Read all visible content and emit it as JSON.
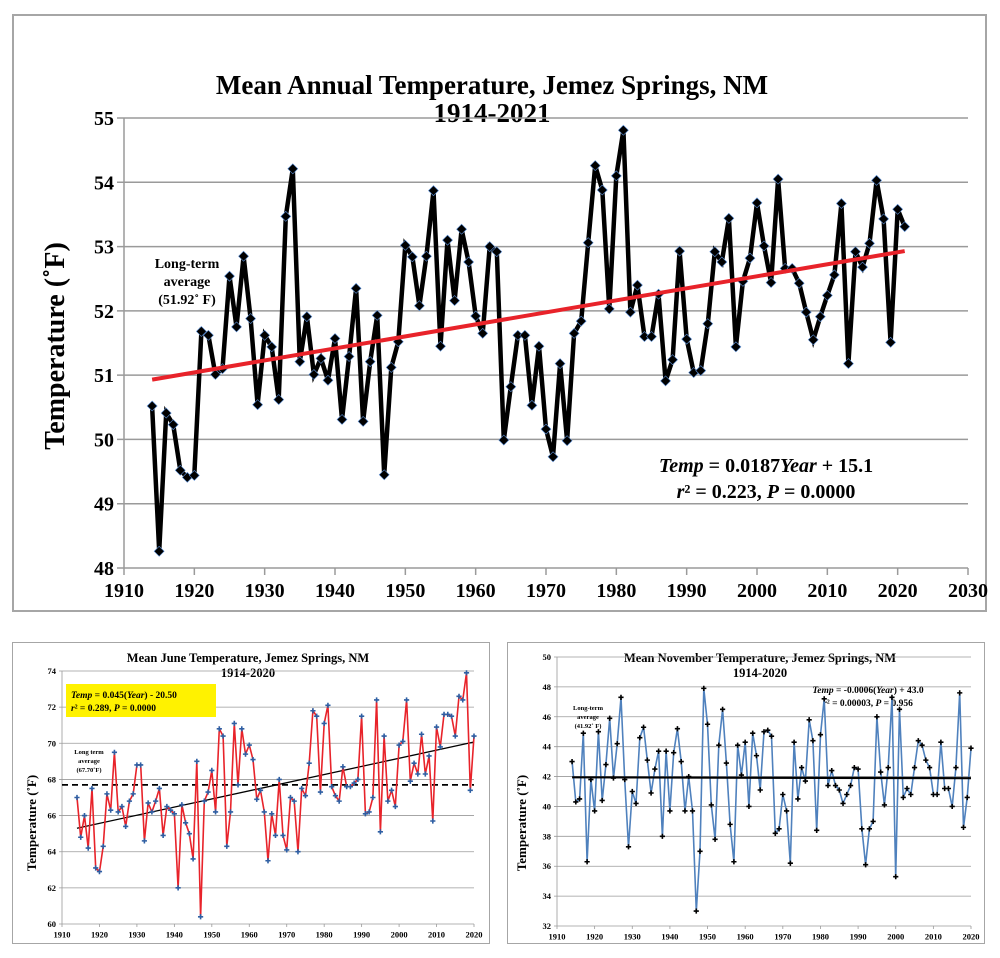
{
  "chart_data": [
    {
      "id": "annual",
      "type": "line",
      "title": "Mean  Annual  Temperature,  Jemez Springs, NM",
      "subtitle": "1914-2021",
      "xlabel": "",
      "ylabel": "Temperature (˚F)",
      "xlim": [
        1910,
        2030
      ],
      "ylim": [
        48,
        55
      ],
      "xticks": [
        1910,
        1920,
        1930,
        1940,
        1950,
        1960,
        1970,
        1980,
        1990,
        2000,
        2010,
        2020,
        2030
      ],
      "yticks": [
        48,
        49,
        50,
        51,
        52,
        53,
        54,
        55
      ],
      "grid": true,
      "series_color": "#000000",
      "marker_color": "#000000",
      "trend_color": "#e8232a",
      "annotation_avg": [
        "Long-term",
        "average",
        "(51.92˚ F)"
      ],
      "equation_line1": {
        "a": "Temp",
        "b": " = 0.0187",
        "c": "Year",
        "d": " + 15.1"
      },
      "equation_line2": {
        "a": "r",
        "b": "² = 0.223, ",
        "c": "P",
        "d": " = 0.0000"
      },
      "trend": {
        "slope": 0.0187,
        "intercept": 15.1,
        "x_start": 1914,
        "x_end": 2021,
        "y_start": 50.93,
        "y_end": 52.93
      },
      "long_term_average": 51.92,
      "x": [
        1914,
        1915,
        1916,
        1917,
        1918,
        1919,
        1920,
        1921,
        1922,
        1923,
        1924,
        1925,
        1926,
        1927,
        1928,
        1929,
        1930,
        1931,
        1932,
        1933,
        1934,
        1935,
        1936,
        1937,
        1938,
        1939,
        1940,
        1941,
        1942,
        1943,
        1944,
        1945,
        1946,
        1947,
        1948,
        1949,
        1950,
        1951,
        1952,
        1953,
        1954,
        1955,
        1956,
        1957,
        1958,
        1959,
        1960,
        1961,
        1962,
        1963,
        1964,
        1965,
        1966,
        1967,
        1968,
        1969,
        1970,
        1971,
        1972,
        1973,
        1974,
        1975,
        1976,
        1977,
        1978,
        1979,
        1980,
        1981,
        1982,
        1983,
        1984,
        1985,
        1986,
        1987,
        1988,
        1989,
        1990,
        1991,
        1992,
        1993,
        1994,
        1995,
        1996,
        1997,
        1998,
        1999,
        2000,
        2001,
        2002,
        2003,
        2004,
        2005,
        2006,
        2007,
        2008,
        2009,
        2010,
        2011,
        2012,
        2013,
        2014,
        2015,
        2016,
        2017,
        2018,
        2019,
        2020,
        2021
      ],
      "values": [
        50.52,
        48.26,
        50.41,
        50.23,
        49.52,
        49.41,
        49.44,
        51.68,
        51.62,
        51.01,
        51.1,
        52.54,
        51.75,
        52.85,
        51.88,
        50.54,
        51.62,
        51.44,
        50.62,
        53.47,
        54.21,
        51.21,
        51.91,
        51.01,
        51.26,
        50.92,
        51.57,
        50.31,
        51.29,
        52.35,
        50.28,
        51.21,
        51.93,
        49.45,
        51.12,
        51.52,
        53.02,
        52.84,
        52.08,
        52.85,
        53.87,
        51.45,
        53.1,
        52.16,
        53.27,
        52.76,
        51.92,
        51.65,
        53.0,
        52.92,
        49.99,
        50.82,
        51.62,
        51.62,
        50.53,
        51.45,
        50.16,
        49.73,
        51.18,
        49.98,
        51.65,
        51.84,
        53.06,
        54.26,
        53.88,
        52.03,
        54.1,
        54.81,
        51.98,
        52.4,
        51.6,
        51.6,
        52.26,
        50.91,
        51.24,
        52.93,
        51.56,
        51.04,
        51.07,
        51.8,
        52.92,
        52.76,
        53.44,
        51.44,
        52.46,
        52.82,
        53.68,
        53.01,
        52.44,
        54.05,
        52.66,
        52.66,
        52.43,
        51.98,
        51.55,
        51.91,
        52.24,
        52.56,
        53.67,
        51.18,
        52.92,
        52.68,
        53.05,
        54.03,
        53.43,
        51.51,
        53.58,
        53.31
      ]
    },
    {
      "id": "june",
      "type": "line",
      "title": "Mean  June  Temperature,  Jemez Springs, NM",
      "subtitle": "1914-2020",
      "xlabel": "",
      "ylabel": "Temperature (˚F)",
      "xlim": [
        1910,
        2020
      ],
      "ylim": [
        60,
        74
      ],
      "xticks": [
        1910,
        1920,
        1930,
        1940,
        1950,
        1960,
        1970,
        1980,
        1990,
        2000,
        2010,
        2020
      ],
      "yticks": [
        60,
        62,
        64,
        66,
        68,
        70,
        72,
        74
      ],
      "grid": true,
      "series_color": "#e8232a",
      "marker_color": "#2e5fa3",
      "trend_color": "#000000",
      "box_color": "#fff200",
      "annotation_avg": [
        "Long term",
        "average",
        "(67.70˚F)"
      ],
      "equation_line1": {
        "a": "Temp",
        "b": " = 0.045(",
        "c": "Year",
        "d": ") - 20.50"
      },
      "equation_line2": {
        "a": "r",
        "b": "² = 0.289, ",
        "c": "P",
        "d": " = 0.0000"
      },
      "trend": {
        "slope": 0.045,
        "intercept": -20.5,
        "x_start": 1914,
        "x_end": 2020,
        "y_start": 65.3,
        "y_end": 70.07
      },
      "long_term_average": 67.7,
      "x": [
        1914,
        1915,
        1916,
        1917,
        1918,
        1919,
        1920,
        1921,
        1922,
        1923,
        1924,
        1925,
        1926,
        1927,
        1928,
        1929,
        1930,
        1931,
        1932,
        1933,
        1934,
        1935,
        1936,
        1937,
        1938,
        1939,
        1940,
        1941,
        1942,
        1943,
        1944,
        1945,
        1946,
        1947,
        1948,
        1949,
        1950,
        1951,
        1952,
        1953,
        1954,
        1955,
        1956,
        1957,
        1958,
        1959,
        1960,
        1961,
        1962,
        1963,
        1964,
        1965,
        1966,
        1967,
        1968,
        1969,
        1970,
        1971,
        1972,
        1973,
        1974,
        1975,
        1976,
        1977,
        1978,
        1979,
        1980,
        1981,
        1982,
        1983,
        1984,
        1985,
        1986,
        1987,
        1988,
        1989,
        1990,
        1991,
        1992,
        1993,
        1994,
        1995,
        1996,
        1997,
        1998,
        1999,
        2000,
        2001,
        2002,
        2003,
        2004,
        2005,
        2006,
        2007,
        2008,
        2009,
        2010,
        2011,
        2012,
        2013,
        2014,
        2015,
        2016,
        2017,
        2018,
        2019,
        2020
      ],
      "values": [
        67.0,
        64.8,
        66.0,
        64.2,
        67.5,
        63.1,
        62.9,
        64.3,
        67.2,
        66.3,
        69.5,
        66.2,
        66.5,
        65.4,
        66.8,
        67.2,
        68.8,
        68.8,
        64.6,
        66.7,
        66.2,
        66.8,
        67.5,
        64.9,
        66.5,
        66.3,
        66.1,
        62.0,
        66.6,
        65.6,
        65.0,
        63.6,
        69.0,
        60.4,
        66.8,
        67.3,
        68.5,
        66.2,
        70.8,
        70.4,
        64.3,
        66.2,
        71.1,
        67.7,
        70.8,
        69.4,
        69.9,
        69.1,
        66.9,
        67.4,
        66.2,
        63.5,
        66.1,
        64.9,
        68.0,
        64.9,
        64.1,
        67.0,
        66.8,
        64.0,
        67.5,
        67.1,
        68.9,
        71.8,
        71.5,
        67.3,
        71.1,
        72.1,
        67.6,
        67.1,
        66.8,
        68.7,
        67.6,
        67.6,
        67.8,
        68.0,
        71.5,
        66.1,
        66.2,
        67.0,
        72.4,
        65.1,
        70.4,
        66.8,
        67.4,
        66.5,
        69.9,
        70.1,
        72.4,
        67.9,
        68.9,
        68.3,
        70.5,
        68.3,
        69.3,
        65.7,
        70.9,
        69.8,
        71.6,
        71.6,
        71.5,
        70.4,
        72.6,
        72.4,
        73.9,
        67.4,
        70.4
      ]
    },
    {
      "id": "november",
      "type": "line",
      "title": "Mean  November  Temperature,  Jemez Springs, NM",
      "subtitle": "1914-2020",
      "xlabel": "",
      "ylabel": "Temperature (˚F)",
      "xlim": [
        1910,
        2020
      ],
      "ylim": [
        32,
        50
      ],
      "xticks": [
        1910,
        1920,
        1930,
        1940,
        1950,
        1960,
        1970,
        1980,
        1990,
        2000,
        2010,
        2020
      ],
      "yticks": [
        32,
        34,
        36,
        38,
        40,
        42,
        44,
        46,
        48,
        50
      ],
      "grid": true,
      "series_color": "#4f81bd",
      "marker_color": "#000000",
      "trend_color": "#000000",
      "annotation_avg": [
        "Long-term",
        "average",
        "(41.92˚ F)"
      ],
      "equation_line1": {
        "a": "Temp",
        "b": " = -0.0006(",
        "c": "Year",
        "d": ") + 43.0"
      },
      "equation_line2": {
        "a": "r",
        "b": "² = 0.00003, ",
        "c": "P",
        "d": " = 0.956"
      },
      "trend": {
        "slope": -0.0006,
        "intercept": 43.0,
        "x_start": 1914,
        "x_end": 2020,
        "y_start": 41.95,
        "y_end": 41.89
      },
      "long_term_average": 41.92,
      "x": [
        1914,
        1915,
        1916,
        1917,
        1918,
        1919,
        1920,
        1921,
        1922,
        1923,
        1924,
        1925,
        1926,
        1927,
        1928,
        1929,
        1930,
        1931,
        1932,
        1933,
        1934,
        1935,
        1936,
        1937,
        1938,
        1939,
        1940,
        1941,
        1942,
        1943,
        1944,
        1945,
        1946,
        1947,
        1948,
        1949,
        1950,
        1951,
        1952,
        1953,
        1954,
        1955,
        1956,
        1957,
        1958,
        1959,
        1960,
        1961,
        1962,
        1963,
        1964,
        1965,
        1966,
        1967,
        1968,
        1969,
        1970,
        1971,
        1972,
        1973,
        1974,
        1975,
        1976,
        1977,
        1978,
        1979,
        1980,
        1981,
        1982,
        1983,
        1984,
        1985,
        1986,
        1987,
        1988,
        1989,
        1990,
        1991,
        1992,
        1993,
        1994,
        1995,
        1996,
        1997,
        1998,
        1999,
        2000,
        2001,
        2002,
        2003,
        2004,
        2005,
        2006,
        2007,
        2008,
        2009,
        2010,
        2011,
        2012,
        2013,
        2014,
        2015,
        2016,
        2017,
        2018,
        2019,
        2020
      ],
      "values": [
        43.0,
        40.3,
        40.5,
        44.9,
        36.3,
        41.8,
        39.7,
        45.0,
        40.4,
        42.8,
        45.9,
        41.9,
        44.2,
        47.3,
        41.8,
        37.3,
        41.0,
        40.2,
        44.6,
        45.3,
        43.1,
        40.9,
        42.5,
        43.7,
        38.0,
        43.7,
        39.7,
        43.6,
        45.2,
        43.0,
        39.7,
        42.0,
        39.7,
        33.0,
        37.0,
        47.9,
        45.5,
        40.1,
        37.8,
        44.1,
        46.5,
        42.9,
        38.8,
        36.3,
        44.1,
        42.1,
        44.3,
        40.0,
        44.9,
        43.4,
        41.1,
        45.0,
        45.1,
        44.7,
        38.2,
        38.5,
        40.8,
        39.7,
        36.2,
        44.3,
        40.5,
        42.6,
        41.7,
        45.8,
        44.4,
        38.4,
        44.8,
        47.2,
        41.4,
        42.4,
        41.4,
        41.1,
        40.2,
        40.8,
        41.4,
        42.6,
        42.5,
        38.5,
        36.1,
        38.5,
        39.0,
        46.0,
        42.3,
        40.1,
        42.6,
        47.3,
        35.3,
        46.5,
        40.6,
        41.2,
        40.8,
        42.6,
        44.4,
        44.1,
        43.1,
        42.6,
        40.8,
        40.8,
        44.3,
        41.2,
        41.2,
        40.0,
        42.6,
        47.6,
        38.6,
        40.6,
        43.9
      ]
    }
  ]
}
